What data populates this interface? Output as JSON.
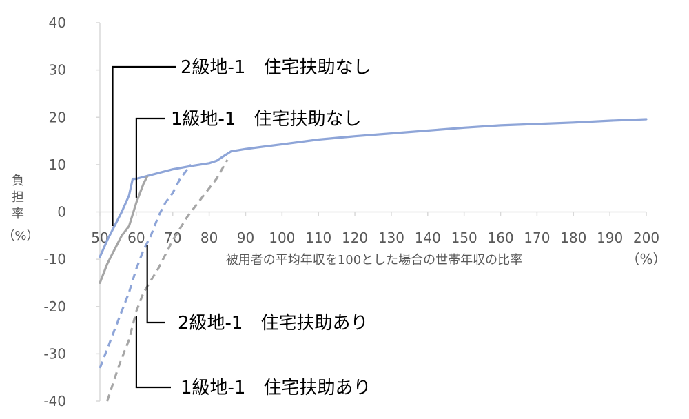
{
  "chart_data": {
    "type": "line",
    "title": "",
    "xlabel": "被用者の平均年収を100とした場合の世帯年収の比率",
    "xunit": "（%）",
    "ylabel_chars": [
      "負",
      "担",
      "率"
    ],
    "yunit": "（%）",
    "xlim": [
      50,
      200
    ],
    "ylim": [
      -40,
      40
    ],
    "xticks": [
      50,
      60,
      70,
      80,
      90,
      100,
      110,
      120,
      130,
      140,
      150,
      160,
      170,
      180,
      190,
      200
    ],
    "yticks": [
      40,
      30,
      20,
      10,
      0,
      -10,
      -20,
      -30,
      -40
    ],
    "grid": false,
    "series": [
      {
        "key": "s_blue_solid",
        "color": "#8EA5D8",
        "dash": "solid",
        "x": [
          50,
          52,
          54,
          56,
          58,
          59,
          60,
          65,
          70,
          75,
          80,
          82,
          84,
          85,
          86,
          90,
          100,
          110,
          120,
          130,
          140,
          150,
          160,
          170,
          180,
          190,
          200
        ],
        "y": [
          -9.5,
          -6,
          -3,
          0,
          3.5,
          7,
          7,
          8,
          9,
          9.7,
          10.3,
          10.8,
          11.8,
          12.3,
          12.8,
          13.3,
          14.3,
          15.3,
          16,
          16.6,
          17.2,
          17.8,
          18.3,
          18.6,
          18.9,
          19.3,
          19.6
        ]
      },
      {
        "key": "s_gray_solid",
        "color": "#A6A6A6",
        "dash": "solid",
        "x": [
          50,
          52,
          54,
          56,
          58,
          60,
          61,
          62,
          63
        ],
        "y": [
          -15,
          -11,
          -8,
          -5,
          -3,
          2,
          4,
          6,
          7.5
        ]
      },
      {
        "key": "s_blue_dashed",
        "color": "#8EA5D8",
        "dash": "dashed",
        "x": [
          50,
          52,
          54,
          56,
          58,
          60,
          62,
          64,
          66,
          68,
          70,
          72,
          74,
          75
        ],
        "y": [
          -33,
          -29,
          -25,
          -21,
          -17,
          -12,
          -8,
          -5,
          -1,
          2,
          4,
          7,
          9,
          10
        ]
      },
      {
        "key": "s_gray_dashed",
        "color": "#A6A6A6",
        "dash": "dashed",
        "x": [
          52,
          55,
          58,
          60,
          62,
          66,
          70,
          74,
          78,
          82,
          85
        ],
        "y": [
          -40,
          -33,
          -27,
          -21,
          -17,
          -12,
          -6,
          -1,
          3,
          7,
          11
        ]
      }
    ],
    "annotations": [
      {
        "text": "2級地-1　住宅扶助なし",
        "point_x": 53.5,
        "point_y": -3
      },
      {
        "text": "1級地-1　住宅扶助なし",
        "point_x": 60,
        "point_y": 3
      },
      {
        "text": "2級地-1　住宅扶助あり",
        "point_x": 63,
        "point_y": -7
      },
      {
        "text": "1級地-1　住宅扶助あり",
        "point_x": 60,
        "point_y": -22
      }
    ]
  }
}
